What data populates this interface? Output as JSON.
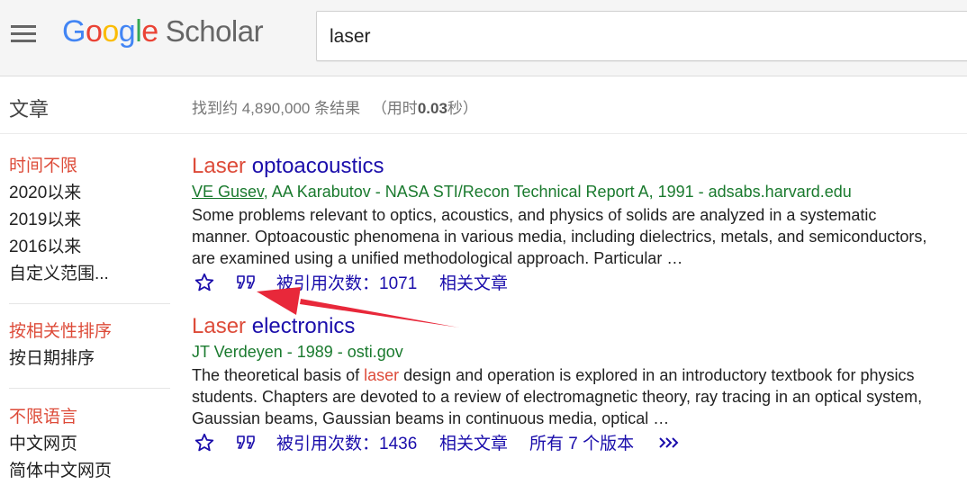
{
  "header": {
    "logo": {
      "g1": "G",
      "o1": "o",
      "o2": "o",
      "g2": "g",
      "l": "l",
      "e": "e",
      "scholar": "Scholar"
    },
    "search": {
      "value": "laser"
    }
  },
  "subheader": {
    "section": "文章",
    "stats_prefix": "找到约 4,890,000 条结果",
    "stats_time_open": "（用时",
    "stats_time": "0.03",
    "stats_time_close": "秒）"
  },
  "sidebar": {
    "time": [
      "时间不限",
      "2020以来",
      "2019以来",
      "2016以来",
      "自定义范围..."
    ],
    "sort": [
      "按相关性排序",
      "按日期排序"
    ],
    "lang": [
      "不限语言",
      "中文网页",
      "简体中文网页"
    ]
  },
  "results": [
    {
      "title_hl": "Laser",
      "title_rest": " optoacoustics",
      "author_link": "VE Gusev",
      "authors_rest": ", AA Karabutov - NASA STI/Recon Technical Report A, 1991 - adsabs.harvard.edu",
      "snippet": "Some problems relevant to optics, acoustics, and physics of solids are analyzed in a systematic manner. Optoacoustic phenomena in various media, including dielectrics, metals, and semiconductors, are examined using a unified methodological approach. Particular …",
      "cited": "被引用次数：1071",
      "related": "相关文章"
    },
    {
      "title_hl": "Laser",
      "title_rest": " electronics",
      "authors": "JT Verdeyen - 1989 - osti.gov",
      "snippet_pre": "The theoretical basis of ",
      "snippet_hl": "laser",
      "snippet_post": " design and operation is explored in an introductory textbook for physics students. Chapters are devoted to a review of electromagnetic theory, ray tracing in an optical system, Gaussian beams, Gaussian beams in continuous media, optical …",
      "cited": "被引用次数：1436",
      "related": "相关文章",
      "versions": "所有 7 个版本"
    }
  ],
  "icons": [
    "menu-icon",
    "star-icon",
    "cite-icon",
    "more-icon"
  ],
  "colors": {
    "accent_red": "#dd4b39",
    "link_blue": "#1a0dab",
    "green": "#1a7a2e",
    "arrow": "#e8283a"
  }
}
